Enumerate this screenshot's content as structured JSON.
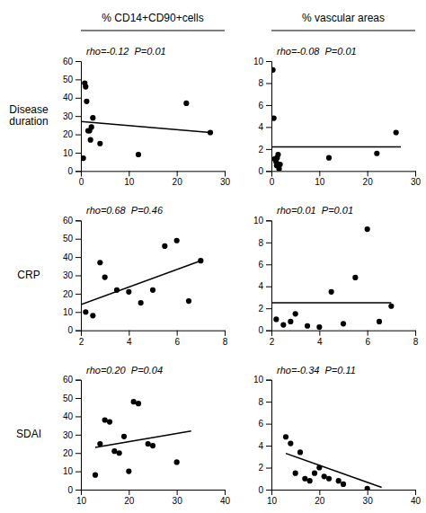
{
  "column_titles": [
    "% CD14+CD90+cells",
    "% vascular areas"
  ],
  "row_labels": [
    "Disease\nduration",
    "CRP",
    "SDAI"
  ],
  "chart_data": [
    {
      "type": "scatter",
      "annotation": "rho=-0.12  P=0.01",
      "xlim": [
        0,
        30
      ],
      "ylim": [
        0,
        60
      ],
      "xticks": [
        0,
        10,
        20,
        30
      ],
      "yticks": [
        0,
        10,
        20,
        30,
        40,
        50,
        60
      ],
      "series": [
        {
          "type": "scatter",
          "color": "black",
          "marker": "circle",
          "x": [
            0.5,
            0.8,
            1.0,
            1.2,
            1.5,
            1.8,
            2.0,
            2.2,
            2.5,
            4.0,
            12,
            22,
            27
          ],
          "values": [
            7,
            48,
            46,
            38,
            22,
            22,
            17,
            24,
            29,
            15,
            9,
            37,
            21
          ]
        },
        {
          "type": "line",
          "color": "black",
          "line_style": "solid",
          "x": [
            0,
            27
          ],
          "values": [
            27,
            21
          ]
        }
      ]
    },
    {
      "type": "scatter",
      "annotation": "rho=-0.08  P=0.01",
      "xlim": [
        0,
        30
      ],
      "ylim": [
        0,
        10
      ],
      "xticks": [
        0,
        10,
        20,
        30
      ],
      "yticks": [
        0,
        2,
        4,
        6,
        8,
        10
      ],
      "series": [
        {
          "type": "scatter",
          "color": "black",
          "marker": "circle",
          "x": [
            0.3,
            0.5,
            0.7,
            0.9,
            1.0,
            1.1,
            1.2,
            1.4,
            1.6,
            1.8,
            12,
            22,
            26
          ],
          "values": [
            9.2,
            4.8,
            1.1,
            1.0,
            0.8,
            0.5,
            1.2,
            1.5,
            0.2,
            0.6,
            1.2,
            1.6,
            3.5
          ]
        },
        {
          "type": "line",
          "color": "black",
          "line_style": "solid",
          "x": [
            0,
            27
          ],
          "values": [
            2.2,
            2.2
          ]
        }
      ]
    },
    {
      "type": "scatter",
      "annotation": "rho=0.68  P=0.46",
      "xlim": [
        2,
        8
      ],
      "ylim": [
        0,
        60
      ],
      "xticks": [
        2,
        4,
        6,
        8
      ],
      "yticks": [
        0,
        10,
        20,
        30,
        40,
        50,
        60
      ],
      "series": [
        {
          "type": "scatter",
          "color": "black",
          "marker": "circle",
          "x": [
            2.2,
            2.5,
            2.8,
            3.0,
            3.5,
            4.0,
            4.5,
            5.0,
            5.5,
            6.0,
            6.5,
            7.0
          ],
          "values": [
            10,
            8,
            37,
            29,
            22,
            21,
            15,
            22,
            46,
            49,
            16,
            38
          ]
        },
        {
          "type": "line",
          "color": "black",
          "line_style": "solid",
          "x": [
            2,
            7
          ],
          "values": [
            14,
            38
          ]
        }
      ]
    },
    {
      "type": "scatter",
      "annotation": "rho=0.01  P=0.01",
      "xlim": [
        2,
        8
      ],
      "ylim": [
        0,
        10
      ],
      "xticks": [
        2,
        4,
        6,
        8
      ],
      "yticks": [
        0,
        2,
        4,
        6,
        8,
        10
      ],
      "series": [
        {
          "type": "scatter",
          "color": "black",
          "marker": "circle",
          "x": [
            2.2,
            2.5,
            2.8,
            3.0,
            3.5,
            4.0,
            4.5,
            5.0,
            5.5,
            6.0,
            6.5,
            7.0
          ],
          "values": [
            1.0,
            0.5,
            0.8,
            1.5,
            0.4,
            0.3,
            3.5,
            0.6,
            4.8,
            9.2,
            0.8,
            2.2
          ]
        },
        {
          "type": "line",
          "color": "black",
          "line_style": "solid",
          "x": [
            2,
            7
          ],
          "values": [
            2.5,
            2.5
          ]
        }
      ]
    },
    {
      "type": "scatter",
      "annotation": "rho=0.20  P=0.04",
      "xlim": [
        10,
        40
      ],
      "ylim": [
        0,
        60
      ],
      "xticks": [
        10,
        20,
        30,
        40
      ],
      "yticks": [
        0,
        10,
        20,
        30,
        40,
        50,
        60
      ],
      "series": [
        {
          "type": "scatter",
          "color": "black",
          "marker": "circle",
          "x": [
            13,
            14,
            15,
            16,
            17,
            18,
            19,
            20,
            21,
            22,
            24,
            25,
            30
          ],
          "values": [
            8,
            25,
            38,
            37,
            21,
            20,
            29,
            10,
            48,
            47,
            25,
            24,
            15
          ]
        },
        {
          "type": "line",
          "color": "black",
          "line_style": "solid",
          "x": [
            13,
            33
          ],
          "values": [
            23,
            32
          ]
        }
      ]
    },
    {
      "type": "scatter",
      "annotation": "rho=-0.34  P=0.11",
      "xlim": [
        10,
        40
      ],
      "ylim": [
        0,
        10
      ],
      "xticks": [
        10,
        20,
        30,
        40
      ],
      "yticks": [
        0,
        2,
        4,
        6,
        8,
        10
      ],
      "series": [
        {
          "type": "scatter",
          "color": "black",
          "marker": "circle",
          "x": [
            13,
            14,
            15,
            16,
            17,
            18,
            19,
            20,
            21,
            22,
            24,
            25,
            30
          ],
          "values": [
            4.8,
            4.2,
            1.5,
            3.4,
            1.0,
            0.8,
            1.5,
            2.0,
            1.2,
            1.0,
            0.8,
            0.5,
            0.1
          ]
        },
        {
          "type": "line",
          "color": "black",
          "line_style": "solid",
          "x": [
            13,
            33
          ],
          "values": [
            3.3,
            0.2
          ]
        }
      ]
    }
  ]
}
